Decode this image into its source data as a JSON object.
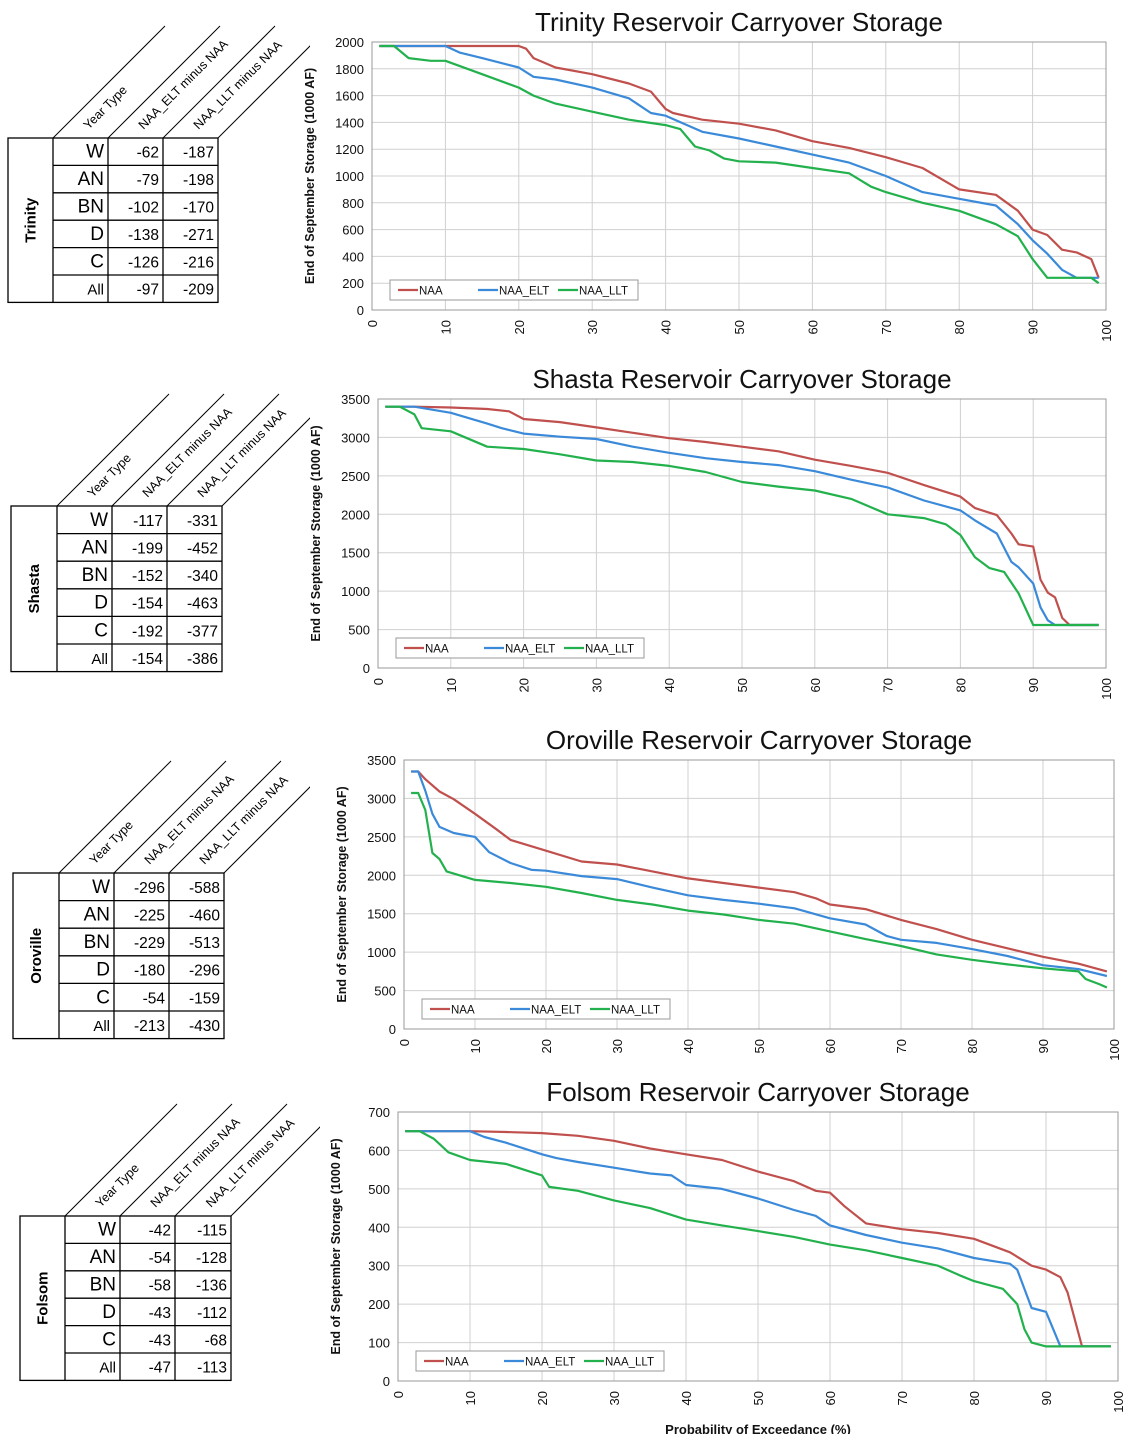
{
  "panels": [
    {
      "reservoir": "Trinity",
      "table": {
        "headers": [
          "Year Type",
          "NAA_ELT minus NAA",
          "NAA_LLT minus NAA"
        ],
        "rows": [
          {
            "year_type": "W",
            "elt": "-62",
            "llt": "-187"
          },
          {
            "year_type": "AN",
            "elt": "-79",
            "llt": "-198"
          },
          {
            "year_type": "BN",
            "elt": "-102",
            "llt": "-170"
          },
          {
            "year_type": "D",
            "elt": "-138",
            "llt": "-271"
          },
          {
            "year_type": "C",
            "elt": "-126",
            "llt": "-216"
          },
          {
            "year_type": "All",
            "elt": "-97",
            "llt": "-209"
          }
        ]
      }
    },
    {
      "reservoir": "Shasta",
      "table": {
        "headers": [
          "Year Type",
          "NAA_ELT minus NAA",
          "NAA_LLT minus NAA"
        ],
        "rows": [
          {
            "year_type": "W",
            "elt": "-117",
            "llt": "-331"
          },
          {
            "year_type": "AN",
            "elt": "-199",
            "llt": "-452"
          },
          {
            "year_type": "BN",
            "elt": "-152",
            "llt": "-340"
          },
          {
            "year_type": "D",
            "elt": "-154",
            "llt": "-463"
          },
          {
            "year_type": "C",
            "elt": "-192",
            "llt": "-377"
          },
          {
            "year_type": "All",
            "elt": "-154",
            "llt": "-386"
          }
        ]
      }
    },
    {
      "reservoir": "Oroville",
      "table": {
        "headers": [
          "Year Type",
          "NAA_ELT minus NAA",
          "NAA_LLT minus NAA"
        ],
        "rows": [
          {
            "year_type": "W",
            "elt": "-296",
            "llt": "-588"
          },
          {
            "year_type": "AN",
            "elt": "-225",
            "llt": "-460"
          },
          {
            "year_type": "BN",
            "elt": "-229",
            "llt": "-513"
          },
          {
            "year_type": "D",
            "elt": "-180",
            "llt": "-296"
          },
          {
            "year_type": "C",
            "elt": "-54",
            "llt": "-159"
          },
          {
            "year_type": "All",
            "elt": "-213",
            "llt": "-430"
          }
        ]
      }
    },
    {
      "reservoir": "Folsom",
      "table": {
        "headers": [
          "Year Type",
          "NAA_ELT minus NAA",
          "NAA_LLT minus NAA"
        ],
        "rows": [
          {
            "year_type": "W",
            "elt": "-42",
            "llt": "-115"
          },
          {
            "year_type": "AN",
            "elt": "-54",
            "llt": "-128"
          },
          {
            "year_type": "BN",
            "elt": "-58",
            "llt": "-136"
          },
          {
            "year_type": "D",
            "elt": "-43",
            "llt": "-112"
          },
          {
            "year_type": "C",
            "elt": "-43",
            "llt": "-68"
          },
          {
            "year_type": "All",
            "elt": "-47",
            "llt": "-113"
          }
        ]
      }
    }
  ],
  "colors": {
    "NAA": "#c0504d",
    "NAA_ELT": "#3b8ad9",
    "NAA_LLT": "#22b14c"
  },
  "chart_data": [
    {
      "type": "line",
      "title": "Trinity Reservoir Carryover Storage",
      "xlabel": "",
      "ylabel": "End of September Storage (1000 AF)",
      "xlim": [
        0,
        100
      ],
      "ylim": [
        0,
        2000
      ],
      "xticks": [
        0,
        10,
        20,
        30,
        40,
        50,
        60,
        70,
        80,
        90,
        100
      ],
      "yticks": [
        0,
        200,
        400,
        600,
        800,
        1000,
        1200,
        1400,
        1600,
        1800,
        2000
      ],
      "grid": true,
      "legend": "bottom-left",
      "series": [
        {
          "name": "NAA",
          "x": [
            1,
            5,
            10,
            15,
            20,
            21,
            22,
            25,
            30,
            35,
            38,
            40,
            41,
            45,
            50,
            55,
            60,
            65,
            70,
            75,
            80,
            85,
            88,
            90,
            92,
            94,
            96,
            98,
            99
          ],
          "y": [
            1970,
            1970,
            1970,
            1970,
            1970,
            1950,
            1880,
            1810,
            1760,
            1690,
            1630,
            1500,
            1470,
            1420,
            1390,
            1340,
            1260,
            1210,
            1140,
            1060,
            900,
            860,
            740,
            600,
            560,
            450,
            430,
            380,
            240
          ]
        },
        {
          "name": "NAA_ELT",
          "x": [
            1,
            5,
            10,
            12,
            15,
            20,
            22,
            25,
            30,
            35,
            38,
            40,
            45,
            50,
            55,
            60,
            65,
            70,
            75,
            80,
            85,
            88,
            90,
            92,
            94,
            96,
            99
          ],
          "y": [
            1970,
            1970,
            1970,
            1920,
            1880,
            1810,
            1740,
            1720,
            1660,
            1580,
            1470,
            1450,
            1330,
            1280,
            1220,
            1160,
            1100,
            1000,
            880,
            830,
            780,
            640,
            520,
            420,
            300,
            240,
            240
          ]
        },
        {
          "name": "NAA_LLT",
          "x": [
            1,
            3,
            5,
            8,
            10,
            15,
            20,
            22,
            25,
            30,
            35,
            40,
            42,
            44,
            46,
            48,
            50,
            55,
            60,
            65,
            68,
            70,
            75,
            80,
            85,
            88,
            90,
            92,
            95,
            98,
            99
          ],
          "y": [
            1970,
            1970,
            1880,
            1860,
            1860,
            1760,
            1660,
            1600,
            1540,
            1480,
            1420,
            1380,
            1350,
            1220,
            1190,
            1130,
            1110,
            1100,
            1060,
            1020,
            920,
            880,
            800,
            740,
            640,
            550,
            380,
            240,
            240,
            240,
            200
          ]
        }
      ]
    },
    {
      "type": "line",
      "title": "Shasta Reservoir Carryover Storage",
      "xlabel": "",
      "ylabel": "End of September Storage (1000 AF)",
      "xlim": [
        0,
        100
      ],
      "ylim": [
        0,
        3500
      ],
      "xticks": [
        0,
        10,
        20,
        30,
        40,
        50,
        60,
        70,
        80,
        90,
        100
      ],
      "yticks": [
        0,
        500,
        1000,
        1500,
        2000,
        2500,
        3000,
        3500
      ],
      "grid": true,
      "legend": "bottom-left",
      "series": [
        {
          "name": "NAA",
          "x": [
            1,
            5,
            10,
            15,
            18,
            20,
            25,
            30,
            35,
            40,
            45,
            50,
            55,
            60,
            65,
            70,
            75,
            80,
            82,
            85,
            87,
            88,
            90,
            91,
            92,
            93,
            94,
            95,
            99
          ],
          "y": [
            3400,
            3400,
            3390,
            3370,
            3340,
            3240,
            3200,
            3130,
            3060,
            2990,
            2940,
            2880,
            2820,
            2710,
            2630,
            2540,
            2380,
            2230,
            2080,
            1990,
            1750,
            1610,
            1580,
            1150,
            980,
            920,
            650,
            560,
            560
          ]
        },
        {
          "name": "NAA_ELT",
          "x": [
            1,
            5,
            10,
            15,
            17,
            20,
            25,
            30,
            35,
            40,
            45,
            50,
            55,
            60,
            65,
            70,
            75,
            80,
            82,
            85,
            87,
            88,
            90,
            91,
            92,
            93,
            99
          ],
          "y": [
            3400,
            3400,
            3320,
            3180,
            3120,
            3050,
            3010,
            2980,
            2880,
            2800,
            2730,
            2680,
            2640,
            2560,
            2450,
            2350,
            2180,
            2050,
            1920,
            1750,
            1380,
            1310,
            1100,
            790,
            620,
            560,
            560
          ]
        },
        {
          "name": "NAA_LLT",
          "x": [
            1,
            3,
            5,
            6,
            10,
            15,
            20,
            25,
            30,
            35,
            40,
            45,
            50,
            55,
            60,
            65,
            70,
            75,
            78,
            80,
            82,
            84,
            86,
            88,
            90,
            91,
            99
          ],
          "y": [
            3400,
            3400,
            3300,
            3120,
            3080,
            2880,
            2850,
            2780,
            2700,
            2680,
            2630,
            2550,
            2420,
            2360,
            2310,
            2200,
            2000,
            1950,
            1870,
            1730,
            1440,
            1300,
            1250,
            970,
            560,
            560,
            560
          ]
        }
      ]
    },
    {
      "type": "line",
      "title": "Oroville Reservoir Carryover Storage",
      "xlabel": "",
      "ylabel": "End of September Storage (1000 AF)",
      "xlim": [
        0,
        100
      ],
      "ylim": [
        0,
        3500
      ],
      "xticks": [
        0,
        10,
        20,
        30,
        40,
        50,
        60,
        70,
        80,
        90,
        100
      ],
      "yticks": [
        0,
        500,
        1000,
        1500,
        2000,
        2500,
        3000,
        3500
      ],
      "grid": true,
      "legend": "bottom-left",
      "series": [
        {
          "name": "NAA",
          "x": [
            1,
            2,
            3,
            5,
            7,
            10,
            13,
            15,
            20,
            25,
            30,
            35,
            40,
            45,
            50,
            55,
            58,
            60,
            65,
            70,
            75,
            80,
            85,
            90,
            95,
            99
          ],
          "y": [
            3350,
            3350,
            3250,
            3090,
            2990,
            2800,
            2600,
            2460,
            2320,
            2180,
            2140,
            2050,
            1960,
            1900,
            1840,
            1780,
            1700,
            1620,
            1560,
            1420,
            1300,
            1160,
            1050,
            940,
            850,
            750
          ]
        },
        {
          "name": "NAA_ELT",
          "x": [
            1,
            2,
            3,
            4,
            5,
            7,
            10,
            12,
            15,
            18,
            20,
            25,
            30,
            35,
            40,
            45,
            50,
            55,
            60,
            65,
            68,
            70,
            75,
            80,
            85,
            90,
            95,
            99
          ],
          "y": [
            3350,
            3350,
            3100,
            2800,
            2630,
            2550,
            2500,
            2300,
            2160,
            2070,
            2060,
            1990,
            1950,
            1840,
            1740,
            1680,
            1630,
            1570,
            1440,
            1360,
            1210,
            1160,
            1120,
            1040,
            950,
            830,
            780,
            690
          ]
        },
        {
          "name": "NAA_LLT",
          "x": [
            1,
            2,
            3,
            4,
            5,
            6,
            10,
            15,
            20,
            25,
            30,
            35,
            40,
            45,
            50,
            55,
            60,
            65,
            70,
            75,
            80,
            85,
            90,
            95,
            96,
            98,
            99
          ],
          "y": [
            3070,
            3070,
            2850,
            2290,
            2210,
            2050,
            1940,
            1900,
            1850,
            1770,
            1680,
            1620,
            1540,
            1490,
            1420,
            1370,
            1270,
            1170,
            1080,
            970,
            900,
            840,
            790,
            750,
            650,
            580,
            540
          ]
        }
      ]
    },
    {
      "type": "line",
      "title": "Folsom Reservoir Carryover Storage",
      "xlabel": "Probability of Exceedance (%)",
      "ylabel": "End of September Storage (1000 AF)",
      "xlim": [
        0,
        100
      ],
      "ylim": [
        0,
        700
      ],
      "xticks": [
        0,
        10,
        20,
        30,
        40,
        50,
        60,
        70,
        80,
        90,
        100
      ],
      "yticks": [
        0,
        100,
        200,
        300,
        400,
        500,
        600,
        700
      ],
      "grid": true,
      "legend": "bottom-left",
      "series": [
        {
          "name": "NAA",
          "x": [
            1,
            5,
            10,
            15,
            20,
            25,
            30,
            35,
            40,
            45,
            50,
            55,
            58,
            60,
            62,
            65,
            70,
            75,
            80,
            85,
            88,
            90,
            92,
            93,
            95,
            99
          ],
          "y": [
            650,
            650,
            650,
            648,
            645,
            638,
            625,
            605,
            590,
            575,
            545,
            520,
            495,
            490,
            455,
            410,
            395,
            385,
            370,
            335,
            300,
            290,
            270,
            230,
            90,
            90
          ]
        },
        {
          "name": "NAA_ELT",
          "x": [
            1,
            5,
            10,
            12,
            15,
            20,
            22,
            25,
            30,
            35,
            38,
            40,
            45,
            50,
            55,
            58,
            60,
            65,
            70,
            75,
            80,
            85,
            86,
            88,
            90,
            92,
            99
          ],
          "y": [
            650,
            650,
            650,
            635,
            620,
            590,
            580,
            570,
            555,
            540,
            535,
            510,
            500,
            475,
            445,
            430,
            405,
            380,
            360,
            345,
            320,
            305,
            290,
            190,
            180,
            90,
            90
          ]
        },
        {
          "name": "NAA_LLT",
          "x": [
            1,
            3,
            5,
            7,
            10,
            15,
            20,
            21,
            25,
            30,
            35,
            40,
            45,
            50,
            55,
            60,
            65,
            70,
            75,
            78,
            80,
            84,
            86,
            87,
            88,
            90,
            99
          ],
          "y": [
            650,
            650,
            630,
            595,
            575,
            565,
            535,
            505,
            495,
            470,
            450,
            420,
            405,
            390,
            375,
            355,
            340,
            320,
            300,
            275,
            260,
            240,
            200,
            135,
            100,
            90,
            90
          ]
        }
      ]
    }
  ]
}
